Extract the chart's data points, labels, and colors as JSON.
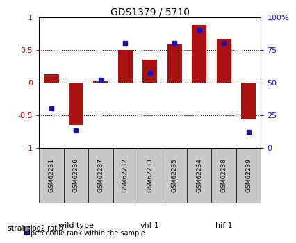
{
  "title": "GDS1379 / 5710",
  "samples": [
    "GSM62231",
    "GSM62236",
    "GSM62237",
    "GSM62232",
    "GSM62233",
    "GSM62235",
    "GSM62234",
    "GSM62238",
    "GSM62239"
  ],
  "log2_ratio": [
    0.12,
    -0.65,
    0.02,
    0.5,
    0.35,
    0.58,
    0.88,
    0.67,
    -0.57
  ],
  "percentile": [
    30,
    13,
    52,
    80,
    57,
    80,
    90,
    80,
    12
  ],
  "groups": [
    {
      "label": "wild type",
      "start": 0,
      "end": 3,
      "color": "#c0ecc0"
    },
    {
      "label": "vhl-1",
      "start": 3,
      "end": 6,
      "color": "#88e888"
    },
    {
      "label": "hif-1",
      "start": 6,
      "end": 9,
      "color": "#44dd44"
    }
  ],
  "bar_color": "#aa1111",
  "dot_color": "#1111cc",
  "ylim_left": [
    -1,
    1
  ],
  "ylim_right": [
    0,
    100
  ],
  "yticks_left": [
    -1,
    -0.5,
    0,
    0.5,
    1
  ],
  "yticks_right": [
    0,
    25,
    50,
    75,
    100
  ],
  "bg_color": "#ffffff",
  "zero_line_color": "#cc0000",
  "strain_label": "strain",
  "legend_red": "log2 ratio",
  "legend_blue": "percentile rank within the sample",
  "sample_box_color": "#c8c8c8"
}
